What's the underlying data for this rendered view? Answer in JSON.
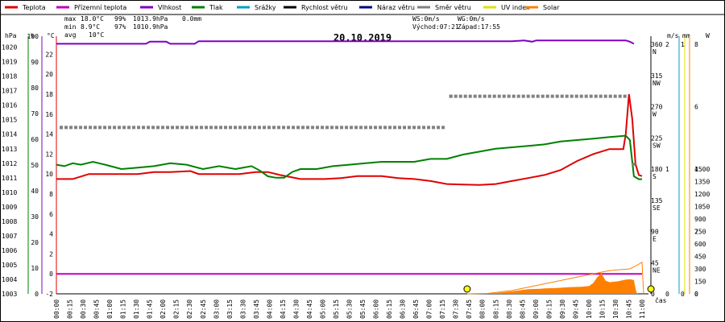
{
  "chart_data": {
    "type": "line",
    "title": "20.10.2019",
    "legend": [
      {
        "name": "Teplota",
        "color": "#e00000"
      },
      {
        "name": "Přízemní teplota",
        "color": "#c000c0"
      },
      {
        "name": "Vlhkost",
        "color": "#8000c0"
      },
      {
        "name": "Tlak",
        "color": "#008000"
      },
      {
        "name": "Srážky",
        "color": "#00a0c0"
      },
      {
        "name": "Rychlost větru",
        "color": "#000000"
      },
      {
        "name": "Náraz větru",
        "color": "#000080"
      },
      {
        "name": "Směr větru",
        "color": "#808080"
      },
      {
        "name": "UV index",
        "color": "#e0e000"
      },
      {
        "name": "Solar",
        "color": "#ff8000"
      }
    ],
    "stats": {
      "max": {
        "label": "max",
        "temp": "18.0°C",
        "hum": "99%",
        "press": "1013.9hPa",
        "rain": "0.0mm"
      },
      "min": {
        "label": "min",
        "temp": "8.9°C",
        "hum": "97%",
        "press": "1010.9hPa"
      },
      "avg": {
        "label": "avg",
        "temp": "10°C"
      },
      "ws": "WS:0m/s",
      "wg": "WG:0m/s",
      "sunrise": "Východ:07:21",
      "sunset": "Západ:17:55"
    },
    "axes": {
      "hpa_unit": "hPa",
      "pct_unit": "%",
      "c_unit": "°C",
      "ms_unit": "m/s",
      "mm_unit": "mm",
      "w_unit": "W",
      "x_unit": "čas",
      "hpa_ticks": [
        1003,
        1004,
        1005,
        1006,
        1007,
        1008,
        1009,
        1010,
        1011,
        1012,
        1013,
        1014,
        1015,
        1016,
        1017,
        1018,
        1019,
        1020
      ],
      "pct_ticks": [
        0,
        10,
        20,
        30,
        40,
        50,
        60,
        70,
        80,
        90,
        100
      ],
      "c_ticks": [
        -2,
        0,
        2,
        4,
        6,
        8,
        10,
        12,
        14,
        16,
        18,
        20,
        22
      ],
      "dir_ticks": [
        {
          "deg": 0,
          "lbl": "0"
        },
        {
          "deg": 45,
          "lbl": "45",
          "dir": "NE"
        },
        {
          "deg": 90,
          "lbl": "90",
          "dir": "E"
        },
        {
          "deg": 135,
          "lbl": "135",
          "dir": "SE"
        },
        {
          "deg": 180,
          "lbl": "180",
          "dir": "S"
        },
        {
          "deg": 225,
          "lbl": "225",
          "dir": "SW"
        },
        {
          "deg": 270,
          "lbl": "270",
          "dir": "W"
        },
        {
          "deg": 315,
          "lbl": "315",
          "dir": "NW"
        },
        {
          "deg": 360,
          "lbl": "360",
          "dir": "N"
        }
      ],
      "ms_ticks": [
        {
          "v": 0,
          "lbl": "0"
        },
        {
          "v": 1,
          "lbl": "1"
        },
        {
          "v": 2,
          "lbl": "2"
        }
      ],
      "mm_ticks": [
        {
          "v": 0,
          "lbl": "0"
        },
        {
          "v": 1,
          "lbl": "1"
        }
      ],
      "uv_ticks": [
        0,
        2,
        4,
        6,
        8
      ],
      "w_ticks": [
        0,
        150,
        300,
        450,
        600,
        750,
        900,
        1050,
        1200,
        1350,
        1500
      ],
      "ylim_c": [
        -2,
        23
      ]
    },
    "x_labels": [
      "00:00",
      "00:15",
      "00:30",
      "00:45",
      "01:00",
      "01:15",
      "01:30",
      "01:45",
      "02:00",
      "02:15",
      "02:30",
      "02:45",
      "03:00",
      "03:15",
      "03:30",
      "03:45",
      "04:00",
      "04:15",
      "04:30",
      "04:45",
      "05:00",
      "05:15",
      "05:30",
      "05:45",
      "06:00",
      "06:15",
      "06:30",
      "06:45",
      "07:00",
      "07:15",
      "07:30",
      "07:45",
      "08:00",
      "08:15",
      "08:30",
      "08:45",
      "09:00",
      "09:15",
      "09:30",
      "09:45",
      "10:00",
      "10:15",
      "10:30",
      "10:45",
      "11:00"
    ],
    "series": [
      {
        "key": "temp",
        "name": "Teplota",
        "color": "#e00000",
        "unit": "C",
        "points": [
          [
            0,
            9.5
          ],
          [
            20,
            9.5
          ],
          [
            40,
            10
          ],
          [
            60,
            10
          ],
          [
            80,
            10
          ],
          [
            100,
            10
          ],
          [
            120,
            10.2
          ],
          [
            140,
            10.2
          ],
          [
            165,
            10.3
          ],
          [
            175,
            10
          ],
          [
            200,
            10
          ],
          [
            225,
            10
          ],
          [
            245,
            10.2
          ],
          [
            260,
            10.2
          ],
          [
            275,
            9.9
          ],
          [
            300,
            9.5
          ],
          [
            330,
            9.5
          ],
          [
            350,
            9.6
          ],
          [
            370,
            9.8
          ],
          [
            400,
            9.8
          ],
          [
            420,
            9.6
          ],
          [
            440,
            9.5
          ],
          [
            460,
            9.3
          ],
          [
            480,
            9.0
          ],
          [
            500,
            8.95
          ],
          [
            520,
            8.9
          ],
          [
            540,
            9.0
          ],
          [
            560,
            9.3
          ],
          [
            580,
            9.6
          ],
          [
            600,
            9.9
          ],
          [
            620,
            10.4
          ],
          [
            640,
            11.3
          ],
          [
            660,
            12.0
          ],
          [
            680,
            12.5
          ],
          [
            697,
            12.5
          ],
          [
            700,
            14.0
          ],
          [
            704,
            18.0
          ],
          [
            708,
            15.5
          ],
          [
            712,
            11.0
          ],
          [
            716,
            9.9
          ],
          [
            720,
            9.8
          ]
        ]
      },
      {
        "key": "ground",
        "name": "Přízemní teplota",
        "color": "#c000c0",
        "unit": "C",
        "points": [
          [
            0,
            0
          ],
          [
            720,
            0
          ]
        ]
      },
      {
        "key": "hum",
        "name": "Vlhkost",
        "color": "#8000c0",
        "unit": "pct",
        "points": [
          [
            0,
            97
          ],
          [
            110,
            97
          ],
          [
            115,
            97.8
          ],
          [
            135,
            97.8
          ],
          [
            140,
            97
          ],
          [
            170,
            97
          ],
          [
            175,
            98
          ],
          [
            560,
            98
          ],
          [
            575,
            98.3
          ],
          [
            585,
            97.8
          ],
          [
            590,
            98.3
          ],
          [
            700,
            98.3
          ],
          [
            705,
            97.8
          ],
          [
            710,
            97
          ]
        ]
      },
      {
        "key": "press",
        "name": "Tlak",
        "color": "#008000",
        "unit": "hPa",
        "points": [
          [
            0,
            1011.9
          ],
          [
            10,
            1011.8
          ],
          [
            20,
            1012
          ],
          [
            30,
            1011.9
          ],
          [
            45,
            1012.1
          ],
          [
            60,
            1011.9
          ],
          [
            80,
            1011.6
          ],
          [
            100,
            1011.7
          ],
          [
            120,
            1011.8
          ],
          [
            140,
            1012.0
          ],
          [
            160,
            1011.9
          ],
          [
            180,
            1011.6
          ],
          [
            200,
            1011.8
          ],
          [
            220,
            1011.6
          ],
          [
            240,
            1011.8
          ],
          [
            250,
            1011.5
          ],
          [
            260,
            1011.1
          ],
          [
            270,
            1011.0
          ],
          [
            280,
            1011.0
          ],
          [
            290,
            1011.4
          ],
          [
            300,
            1011.6
          ],
          [
            320,
            1011.6
          ],
          [
            340,
            1011.8
          ],
          [
            360,
            1011.9
          ],
          [
            380,
            1012.0
          ],
          [
            400,
            1012.1
          ],
          [
            420,
            1012.1
          ],
          [
            440,
            1012.1
          ],
          [
            460,
            1012.3
          ],
          [
            480,
            1012.3
          ],
          [
            500,
            1012.6
          ],
          [
            520,
            1012.8
          ],
          [
            540,
            1013.0
          ],
          [
            560,
            1013.1
          ],
          [
            580,
            1013.2
          ],
          [
            600,
            1013.3
          ],
          [
            620,
            1013.5
          ],
          [
            640,
            1013.6
          ],
          [
            660,
            1013.7
          ],
          [
            680,
            1013.8
          ],
          [
            700,
            1013.9
          ],
          [
            705,
            1013.6
          ],
          [
            710,
            1011.1
          ],
          [
            716,
            1010.9
          ],
          [
            720,
            1010.9
          ]
        ]
      },
      {
        "key": "dir",
        "name": "Směr větru",
        "color": "#808080",
        "unit": "deg",
        "style": "dots",
        "points": [
          [
            0,
            258
          ],
          [
            6,
            240
          ],
          [
            480,
            240
          ],
          [
            485,
            285
          ],
          [
            703,
            285
          ],
          [
            710,
            187
          ],
          [
            712,
            183
          ]
        ]
      },
      {
        "key": "solar",
        "name": "Solar",
        "color": "#ff8000",
        "unit": "W",
        "style": "area",
        "points": [
          [
            515,
            0
          ],
          [
            540,
            10
          ],
          [
            560,
            30
          ],
          [
            580,
            55
          ],
          [
            595,
            60
          ],
          [
            600,
            65
          ],
          [
            615,
            70
          ],
          [
            630,
            80
          ],
          [
            645,
            85
          ],
          [
            655,
            95
          ],
          [
            660,
            130
          ],
          [
            665,
            200
          ],
          [
            670,
            250
          ],
          [
            675,
            160
          ],
          [
            680,
            140
          ],
          [
            690,
            150
          ],
          [
            700,
            170
          ],
          [
            705,
            175
          ],
          [
            710,
            165
          ],
          [
            713,
            20
          ],
          [
            715,
            0
          ]
        ]
      },
      {
        "key": "solar_max",
        "name": "Solar",
        "color": "#ff8000",
        "unit": "W",
        "style": "thin",
        "points": [
          [
            505,
            0
          ],
          [
            530,
            5
          ],
          [
            560,
            40
          ],
          [
            600,
            120
          ],
          [
            640,
            200
          ],
          [
            680,
            280
          ],
          [
            705,
            300
          ],
          [
            715,
            350
          ],
          [
            720,
            380
          ],
          [
            722,
            0
          ]
        ]
      }
    ],
    "sun_markers": [
      {
        "t": 505
      },
      {
        "t": 731
      }
    ]
  }
}
